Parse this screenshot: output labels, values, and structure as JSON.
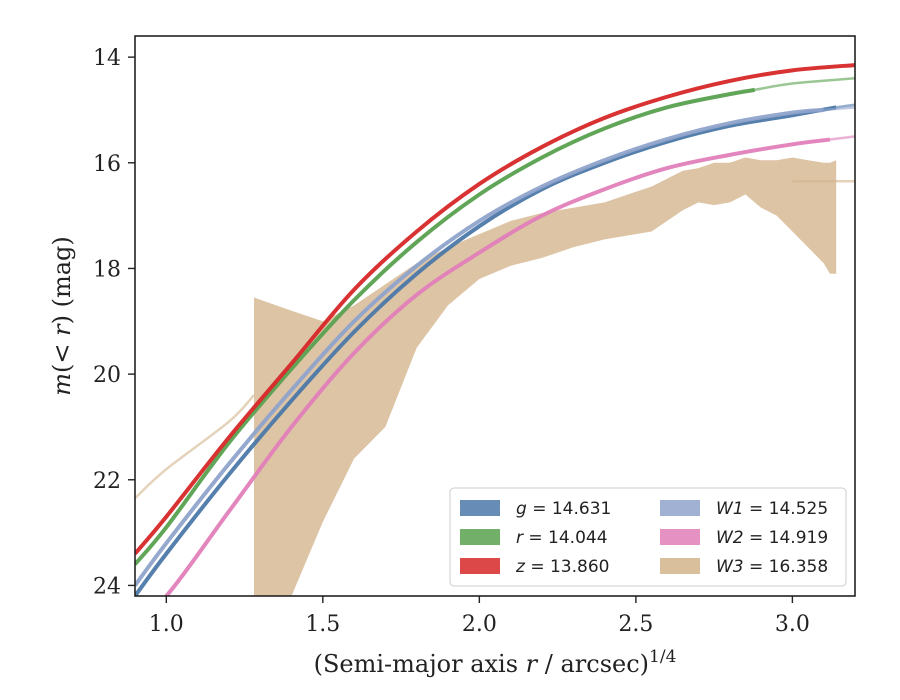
{
  "chart_data": {
    "type": "line",
    "xlabel": "(Semi-major axis r / arcsec)^{1/4}",
    "ylabel": "m(< r) (mag)",
    "xlim": [
      0.9,
      3.2
    ],
    "ylim": [
      24.2,
      13.6
    ],
    "y_inverted": true,
    "xticks": [
      "1.0",
      "1.5",
      "2.0",
      "2.5",
      "3.0"
    ],
    "yticks": [
      "14",
      "16",
      "18",
      "20",
      "22",
      "24"
    ],
    "grid": false,
    "legend_position": "lower-right",
    "legend_columns": 2,
    "series": [
      {
        "name": "g = 14.631",
        "color": "#4C78A8",
        "x": [
          0.9,
          1.0,
          1.2,
          1.4,
          1.6,
          1.8,
          2.0,
          2.2,
          2.4,
          2.6,
          2.8,
          3.0,
          3.14,
          3.2
        ],
        "y": [
          24.2,
          23.4,
          21.9,
          20.5,
          19.2,
          18.1,
          17.2,
          16.5,
          16.0,
          15.6,
          15.3,
          15.1,
          14.95,
          14.9
        ],
        "faded_from_x": 3.14
      },
      {
        "name": "r = 14.044",
        "color": "#59A14F",
        "x": [
          0.9,
          1.0,
          1.2,
          1.4,
          1.6,
          1.8,
          2.0,
          2.2,
          2.4,
          2.6,
          2.8,
          3.0,
          3.2
        ],
        "y": [
          23.6,
          22.9,
          21.3,
          19.9,
          18.6,
          17.5,
          16.6,
          15.9,
          15.35,
          14.95,
          14.7,
          14.5,
          14.4
        ],
        "faded_from_x": 2.88
      },
      {
        "name": "z = 13.860",
        "color": "#D62728",
        "x": [
          0.9,
          1.0,
          1.2,
          1.4,
          1.6,
          1.8,
          2.0,
          2.2,
          2.4,
          2.6,
          2.8,
          3.0,
          3.2
        ],
        "y": [
          23.4,
          22.7,
          21.2,
          19.8,
          18.4,
          17.3,
          16.4,
          15.7,
          15.15,
          14.75,
          14.45,
          14.25,
          14.15
        ],
        "faded_from_x": null
      },
      {
        "name": "W1 = 14.525",
        "color": "#8FA3CB",
        "x": [
          0.9,
          1.0,
          1.2,
          1.4,
          1.6,
          1.8,
          2.0,
          2.2,
          2.4,
          2.6,
          2.8,
          3.0,
          3.2
        ],
        "y": [
          24.0,
          23.2,
          21.7,
          20.3,
          19.0,
          17.95,
          17.1,
          16.45,
          15.95,
          15.55,
          15.25,
          15.05,
          14.95
        ],
        "faded_from_x": 3.1
      },
      {
        "name": "W2 = 14.919",
        "color": "#E07FB9",
        "x": [
          0.9,
          1.0,
          1.2,
          1.4,
          1.6,
          1.8,
          2.0,
          2.2,
          2.4,
          2.6,
          2.8,
          3.0,
          3.2
        ],
        "y": [
          24.6,
          24.2,
          22.6,
          21.0,
          19.6,
          18.5,
          17.7,
          17.0,
          16.5,
          16.1,
          15.85,
          15.65,
          15.5
        ],
        "faded_from_x": 3.12
      },
      {
        "name": "W3 = 16.358",
        "color": "#D4B48C",
        "x": [
          0.9,
          1.0,
          1.2,
          1.28,
          1.4,
          1.6,
          1.8,
          2.0,
          2.2,
          2.4,
          2.6,
          2.8,
          3.0,
          3.14,
          3.2
        ],
        "y": [
          22.35,
          21.8,
          20.9,
          20.4,
          19.9,
          19.2,
          18.4,
          17.7,
          17.2,
          16.8,
          16.5,
          16.35,
          16.35,
          16.35,
          16.35
        ],
        "faded_from_x": 1.28,
        "band_x": [
          1.28,
          1.4,
          1.5,
          1.6,
          1.7,
          1.8,
          1.9,
          2.0,
          2.1,
          2.2,
          2.3,
          2.4,
          2.5,
          2.55,
          2.6,
          2.65,
          2.7,
          2.75,
          2.8,
          2.85,
          2.9,
          2.95,
          3.0,
          3.05,
          3.1,
          3.12,
          3.14
        ],
        "band_upper": [
          18.55,
          18.8,
          19.0,
          18.7,
          18.3,
          17.9,
          17.6,
          17.35,
          17.1,
          16.95,
          16.85,
          16.75,
          16.55,
          16.45,
          16.3,
          16.15,
          16.1,
          16.0,
          16.0,
          15.9,
          15.95,
          15.95,
          15.9,
          15.95,
          16.0,
          16.0,
          15.95
        ],
        "band_lower": [
          24.2,
          24.2,
          22.8,
          21.6,
          21.0,
          19.5,
          18.7,
          18.2,
          17.95,
          17.8,
          17.6,
          17.45,
          17.35,
          17.3,
          17.1,
          16.9,
          16.75,
          16.8,
          16.75,
          16.6,
          16.85,
          17.0,
          17.3,
          17.6,
          17.9,
          18.1,
          18.1
        ]
      }
    ]
  }
}
